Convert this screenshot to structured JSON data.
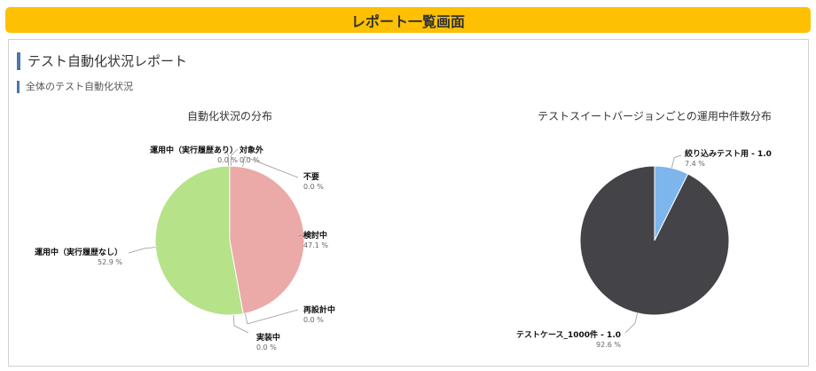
{
  "header": {
    "title": "レポート一覧画面"
  },
  "report": {
    "title": "テスト自動化状況レポート",
    "section": "全体のテスト自動化状況"
  },
  "chart_data": [
    {
      "type": "pie",
      "title": "自動化状況の分布",
      "slices": [
        {
          "label": "対象外",
          "pct_text": "0.0 %",
          "value": 0.0,
          "color": "#e8a7a6"
        },
        {
          "label": "不要",
          "pct_text": "0.0 %",
          "value": 0.0,
          "color": "#e8a7a6"
        },
        {
          "label": "検討中",
          "pct_text": "47.1 %",
          "value": 47.1,
          "color": "#ebaaa7"
        },
        {
          "label": "再設計中",
          "pct_text": "0.0 %",
          "value": 0.0,
          "color": "#ebaaa7"
        },
        {
          "label": "実装中",
          "pct_text": "0.0 %",
          "value": 0.0,
          "color": "#ebaaa7"
        },
        {
          "label": "運用中（実行履歴なし）",
          "pct_text": "52.9 %",
          "value": 52.9,
          "color": "#b6e28a"
        },
        {
          "label": "運用中（実行履歴あり）",
          "pct_text": "0.0 %",
          "value": 0.0,
          "color": "#b6e28a"
        }
      ]
    },
    {
      "type": "pie",
      "title": "テストスイートバージョンごとの運用中件数分布",
      "slices": [
        {
          "label": "絞り込みテスト用 - 1.0",
          "pct_text": "7.4 %",
          "value": 7.4,
          "color": "#7eb5ec"
        },
        {
          "label": "テストケース_1000件 - 1.0",
          "pct_text": "92.6 %",
          "value": 92.6,
          "color": "#434348"
        }
      ]
    }
  ]
}
